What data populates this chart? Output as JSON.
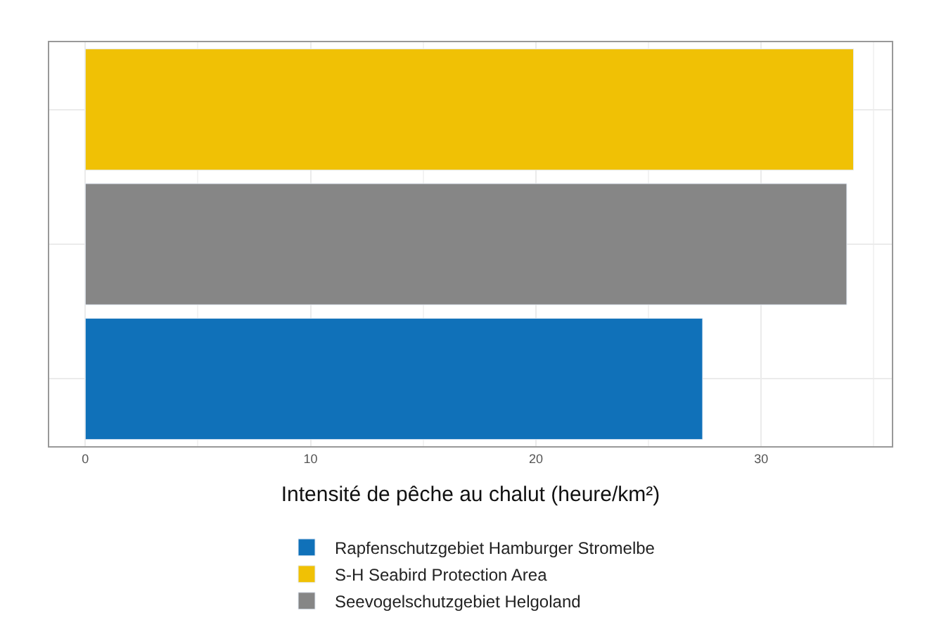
{
  "chart_data": {
    "type": "bar",
    "orientation": "horizontal",
    "xlabel": "Intensité de pêche au chalut (heure/km²)",
    "categories": [
      null,
      null,
      null
    ],
    "series": [
      {
        "name": "Rapfenschutzgebiet Hamburger Stromelbe",
        "color": "#1071b9",
        "values": [
          null,
          null,
          27.4
        ]
      },
      {
        "name": "S-H Seabird Protection Area",
        "color": "#f0c105",
        "values": [
          34.1,
          null,
          null
        ]
      },
      {
        "name": "Seevogelschutzgebiet Helgoland",
        "color": "#868686",
        "values": [
          null,
          33.8,
          null
        ]
      }
    ],
    "xlim": [
      -1.6,
      35.8
    ],
    "xticks": [
      0,
      10,
      20,
      30
    ],
    "grid": true,
    "legend": "bottom",
    "tick_labels": "x"
  }
}
